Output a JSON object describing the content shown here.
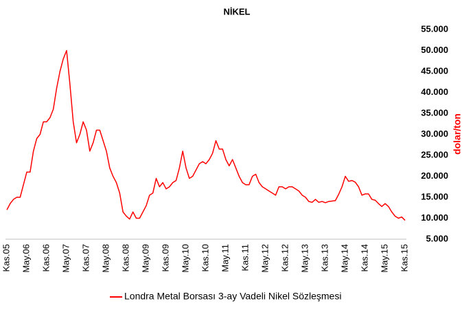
{
  "chart_data": {
    "type": "line",
    "title": "NİKEL",
    "y_label": "dolar/ton",
    "categories": [
      "Kas.05",
      null,
      null,
      null,
      null,
      null,
      "May.06",
      null,
      null,
      null,
      null,
      null,
      "Kas.06",
      null,
      null,
      null,
      null,
      null,
      "May.07",
      null,
      null,
      null,
      null,
      null,
      "Kas.07",
      null,
      null,
      null,
      null,
      null,
      "May.08",
      null,
      null,
      null,
      null,
      null,
      "Kas.08",
      null,
      null,
      null,
      null,
      null,
      "May.09",
      null,
      null,
      null,
      null,
      null,
      "Kas.09",
      null,
      null,
      null,
      null,
      null,
      "May.10",
      null,
      null,
      null,
      null,
      null,
      "Kas.10",
      null,
      null,
      null,
      null,
      null,
      "May.11",
      null,
      null,
      null,
      null,
      null,
      "Kas.11",
      null,
      null,
      null,
      null,
      null,
      "May.12",
      null,
      null,
      null,
      null,
      null,
      "Kas.12",
      null,
      null,
      null,
      null,
      null,
      "May.13",
      null,
      null,
      null,
      null,
      null,
      "Kas.13",
      null,
      null,
      null,
      null,
      null,
      "May.14",
      null,
      null,
      null,
      null,
      null,
      "Kas.14",
      null,
      null,
      null,
      null,
      null,
      "May.15",
      null,
      null,
      null,
      null,
      null,
      "Kas.15"
    ],
    "series": [
      {
        "name": "Londra Metal Borsası 3-ay Vadeli Nikel Sözleşmesi",
        "color": "#ff0000",
        "values": [
          12000,
          13500,
          14500,
          15000,
          15000,
          18000,
          21000,
          21000,
          26000,
          29000,
          30000,
          33000,
          33000,
          34000,
          36000,
          41000,
          45000,
          48000,
          50000,
          42000,
          33000,
          28000,
          30000,
          33000,
          31000,
          26000,
          28000,
          31000,
          31000,
          28500,
          26000,
          22000,
          20000,
          18500,
          16000,
          11500,
          10500,
          9800,
          11500,
          10000,
          10000,
          11500,
          13000,
          15500,
          16000,
          19500,
          17500,
          18500,
          17000,
          17500,
          18500,
          19000,
          22000,
          26000,
          22000,
          19500,
          20000,
          21500,
          23000,
          23500,
          23000,
          24000,
          25500,
          28500,
          26500,
          26500,
          24000,
          22500,
          24000,
          22000,
          20000,
          18500,
          18000,
          18000,
          20000,
          20500,
          18500,
          17500,
          17000,
          16500,
          16000,
          15500,
          17500,
          17500,
          17000,
          17500,
          17500,
          17000,
          16500,
          15500,
          15000,
          14000,
          13800,
          14500,
          13800,
          14000,
          13700,
          14000,
          14100,
          14200,
          15700,
          17500,
          20000,
          18800,
          19000,
          18600,
          17500,
          15500,
          15800,
          15800,
          14500,
          14300,
          13500,
          12800,
          13500,
          12800,
          11500,
          10500,
          10000,
          10300,
          9500
        ]
      }
    ],
    "ylim": [
      5000,
      55000
    ],
    "yticks": [
      {
        "value": 5000,
        "label": "5.000"
      },
      {
        "value": 10000,
        "label": "10.000"
      },
      {
        "value": 15000,
        "label": "15.000"
      },
      {
        "value": 20000,
        "label": "20.000"
      },
      {
        "value": 25000,
        "label": "25.000"
      },
      {
        "value": 30000,
        "label": "30.000"
      },
      {
        "value": 35000,
        "label": "35.000"
      },
      {
        "value": 40000,
        "label": "40.000"
      },
      {
        "value": 45000,
        "label": "45.000"
      },
      {
        "value": 50000,
        "label": "50.000"
      },
      {
        "value": 55000,
        "label": "55.000"
      }
    ],
    "legend": "bottom"
  }
}
